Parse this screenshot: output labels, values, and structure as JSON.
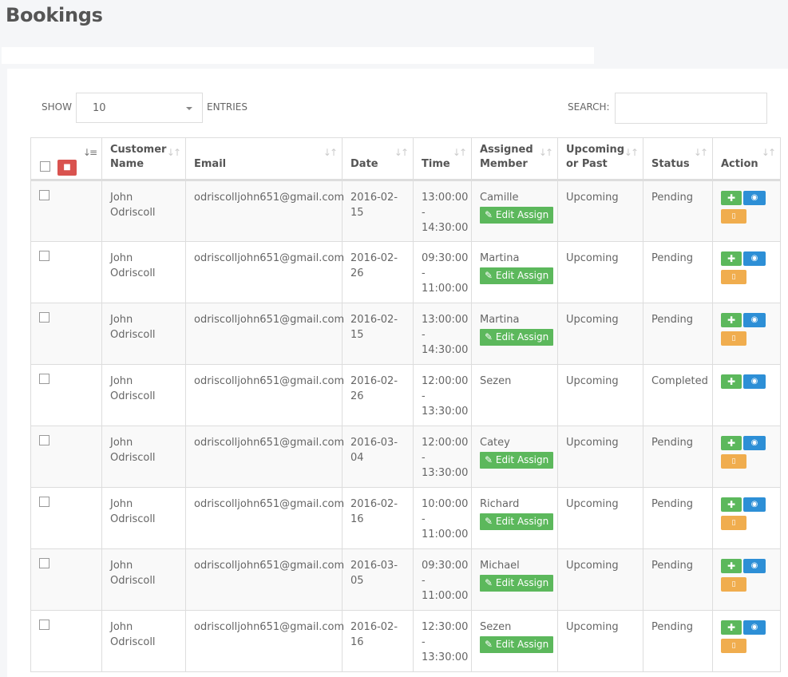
{
  "page": {
    "title": "Bookings"
  },
  "controls": {
    "show_label": "SHOW",
    "length_value": "10",
    "entries_label": "ENTRIES",
    "search_label": "SEARCH:",
    "search_value": ""
  },
  "table": {
    "columns": [
      {
        "key": "customer",
        "label_line1": "Customer",
        "label_line2": "Name"
      },
      {
        "key": "email",
        "label_line1": "",
        "label_line2": "Email"
      },
      {
        "key": "date",
        "label_line1": "",
        "label_line2": "Date"
      },
      {
        "key": "time",
        "label_line1": "",
        "label_line2": "Time"
      },
      {
        "key": "member",
        "label_line1": "Assigned",
        "label_line2": "Member"
      },
      {
        "key": "period",
        "label_line1": "Upcoming",
        "label_line2": "or Past"
      },
      {
        "key": "status",
        "label_line1": "",
        "label_line2": "Status"
      },
      {
        "key": "action",
        "label_line1": "",
        "label_line2": "Action"
      }
    ],
    "edit_assign_label": "Edit Assign",
    "time_separator": "-",
    "rows": [
      {
        "name_first": "John",
        "name_last": "Odriscoll",
        "email": "odriscolljohn651@gmail.com",
        "date": "2016-02-15",
        "time_start": "13:00:00",
        "time_end": "14:30:00",
        "member": "Camille",
        "editable": true,
        "period": "Upcoming",
        "status": "Pending",
        "ticket": true
      },
      {
        "name_first": "John",
        "name_last": "Odriscoll",
        "email": "odriscolljohn651@gmail.com",
        "date": "2016-02-26",
        "time_start": "09:30:00",
        "time_end": "11:00:00",
        "member": "Martina",
        "editable": true,
        "period": "Upcoming",
        "status": "Pending",
        "ticket": true
      },
      {
        "name_first": "John",
        "name_last": "Odriscoll",
        "email": "odriscolljohn651@gmail.com",
        "date": "2016-02-15",
        "time_start": "13:00:00",
        "time_end": "14:30:00",
        "member": "Martina",
        "editable": true,
        "period": "Upcoming",
        "status": "Pending",
        "ticket": true
      },
      {
        "name_first": "John",
        "name_last": "Odriscoll",
        "email": "odriscolljohn651@gmail.com",
        "date": "2016-02-26",
        "time_start": "12:00:00",
        "time_end": "13:30:00",
        "member": "Sezen",
        "editable": false,
        "period": "Upcoming",
        "status": "Completed",
        "ticket": false
      },
      {
        "name_first": "John",
        "name_last": "Odriscoll",
        "email": "odriscolljohn651@gmail.com",
        "date": "2016-03-04",
        "time_start": "12:00:00",
        "time_end": "13:30:00",
        "member": "Catey",
        "editable": true,
        "period": "Upcoming",
        "status": "Pending",
        "ticket": true
      },
      {
        "name_first": "John",
        "name_last": "Odriscoll",
        "email": "odriscolljohn651@gmail.com",
        "date": "2016-02-16",
        "time_start": "10:00:00",
        "time_end": "11:00:00",
        "member": "Richard",
        "editable": true,
        "period": "Upcoming",
        "status": "Pending",
        "ticket": true
      },
      {
        "name_first": "John",
        "name_last": "Odriscoll",
        "email": "odriscolljohn651@gmail.com",
        "date": "2016-03-05",
        "time_start": "09:30:00",
        "time_end": "11:00:00",
        "member": "Michael",
        "editable": true,
        "period": "Upcoming",
        "status": "Pending",
        "ticket": true
      },
      {
        "name_first": "John",
        "name_last": "Odriscoll",
        "email": "odriscolljohn651@gmail.com",
        "date": "2016-02-16",
        "time_start": "12:30:00",
        "time_end": "13:30:00",
        "member": "Sezen",
        "editable": true,
        "period": "Upcoming",
        "status": "Pending",
        "ticket": true
      }
    ]
  },
  "icons": {
    "sort": "sort-icon",
    "sort_active": "sort-amount-icon",
    "delete": "trash-icon",
    "edit": "pencil-icon",
    "add": "plus-icon",
    "view": "eye-icon",
    "ticket": "ticket-icon",
    "dropdown": "caret-down-icon"
  },
  "colors": {
    "success": "#5cb85c",
    "info": "#2d8fd6",
    "warning": "#f0ad4e",
    "danger": "#d9534f"
  }
}
